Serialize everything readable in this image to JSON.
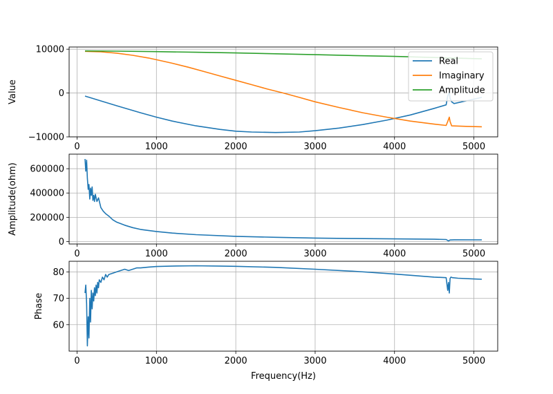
{
  "chart_data": [
    {
      "type": "line",
      "xlabel": "",
      "ylabel": "Value",
      "xlim": [
        -100,
        5300
      ],
      "ylim": [
        -10000,
        10500
      ],
      "xticks": [
        0,
        1000,
        2000,
        3000,
        4000,
        5000
      ],
      "xtick_labels": [
        "0",
        "1000",
        "2000",
        "3000",
        "4000",
        "5000"
      ],
      "yticks": [
        -10000,
        0,
        10000
      ],
      "ytick_labels": [
        "−10000",
        "0",
        "10000"
      ],
      "grid": true,
      "legend_position": "upper right",
      "series": [
        {
          "name": "Real",
          "color": "#1f77b4",
          "x": [
            100,
            300,
            500,
            800,
            1000,
            1200,
            1500,
            1800,
            2000,
            2200,
            2500,
            2800,
            3000,
            3300,
            3600,
            3900,
            4200,
            4500,
            4650,
            4670,
            4690,
            4700,
            4720,
            4750,
            4900,
            5100
          ],
          "y": [
            -700,
            -1800,
            -2900,
            -4500,
            -5500,
            -6400,
            -7500,
            -8300,
            -8700,
            -8900,
            -9000,
            -8900,
            -8600,
            -8000,
            -7200,
            -6200,
            -5000,
            -3500,
            -2700,
            -700,
            200,
            -1200,
            -2000,
            -2400,
            -1800,
            -1000
          ]
        },
        {
          "name": "Imaginary",
          "color": "#ff7f0e",
          "x": [
            100,
            300,
            500,
            700,
            900,
            1000,
            1200,
            1400,
            1600,
            1800,
            2000,
            2200,
            2400,
            2600,
            2800,
            3000,
            3300,
            3600,
            3900,
            4200,
            4500,
            4650,
            4670,
            4690,
            4700,
            4720,
            4900,
            5100
          ],
          "y": [
            9500,
            9400,
            9100,
            8600,
            8000,
            7600,
            6800,
            5900,
            4900,
            3900,
            2900,
            1900,
            900,
            0,
            -1000,
            -2000,
            -3300,
            -4500,
            -5500,
            -6400,
            -7100,
            -7400,
            -6500,
            -5500,
            -6500,
            -7500,
            -7600,
            -7700
          ]
        },
        {
          "name": "Amplitude",
          "color": "#2ca02c",
          "x": [
            100,
            500,
            1000,
            1500,
            2000,
            2500,
            3000,
            3500,
            4000,
            4500,
            5100
          ],
          "y": [
            9600,
            9550,
            9450,
            9300,
            9150,
            8950,
            8750,
            8550,
            8350,
            8100,
            7800
          ]
        }
      ]
    },
    {
      "type": "line",
      "xlabel": "",
      "ylabel": "Amplitude(ohm)",
      "xlim": [
        -100,
        5300
      ],
      "ylim": [
        -20000,
        720000
      ],
      "xticks": [
        0,
        1000,
        2000,
        3000,
        4000,
        5000
      ],
      "xtick_labels": [
        "0",
        "1000",
        "2000",
        "3000",
        "4000",
        "5000"
      ],
      "yticks": [
        0,
        200000,
        400000,
        600000
      ],
      "ytick_labels": [
        "0",
        "200000",
        "400000",
        "600000"
      ],
      "grid": true,
      "series": [
        {
          "name": "",
          "color": "#1f77b4",
          "x": [
            100,
            110,
            120,
            130,
            140,
            150,
            160,
            170,
            180,
            190,
            200,
            210,
            220,
            230,
            250,
            270,
            300,
            330,
            360,
            400,
            450,
            500,
            600,
            700,
            800,
            1000,
            1200,
            1500,
            2000,
            2500,
            3000,
            3500,
            4000,
            4500,
            4650,
            4680,
            4700,
            4750,
            5100
          ],
          "y": [
            680000,
            580000,
            670000,
            520000,
            430000,
            470000,
            350000,
            440000,
            380000,
            450000,
            340000,
            380000,
            330000,
            390000,
            330000,
            360000,
            280000,
            250000,
            230000,
            210000,
            180000,
            160000,
            135000,
            115000,
            100000,
            83000,
            70000,
            57000,
            43000,
            35000,
            29000,
            25000,
            22000,
            19000,
            17000,
            5000,
            13000,
            15000,
            14000
          ]
        }
      ]
    },
    {
      "type": "line",
      "xlabel": "Frequency(Hz)",
      "ylabel": "Phase",
      "xlim": [
        -100,
        5300
      ],
      "ylim": [
        50,
        84
      ],
      "xticks": [
        0,
        1000,
        2000,
        3000,
        4000,
        5000
      ],
      "xtick_labels": [
        "0",
        "1000",
        "2000",
        "3000",
        "4000",
        "5000"
      ],
      "yticks": [
        60,
        70,
        80
      ],
      "ytick_labels": [
        "60",
        "70",
        "80"
      ],
      "grid": true,
      "series": [
        {
          "name": "",
          "color": "#1f77b4",
          "x": [
            100,
            110,
            120,
            130,
            140,
            150,
            160,
            170,
            180,
            190,
            200,
            210,
            220,
            230,
            240,
            250,
            260,
            270,
            280,
            300,
            320,
            340,
            360,
            380,
            400,
            450,
            500,
            550,
            600,
            650,
            700,
            750,
            800,
            900,
            1000,
            1200,
            1500,
            1800,
            2000,
            2500,
            3000,
            3500,
            4000,
            4500,
            4650,
            4670,
            4680,
            4690,
            4700,
            4710,
            4730,
            4800,
            5000,
            5100
          ],
          "y": [
            72,
            75,
            68,
            52,
            63,
            55,
            70,
            61,
            73,
            66,
            72,
            69,
            74,
            71,
            75,
            72,
            76,
            74,
            77,
            76,
            78,
            77,
            79,
            78,
            79,
            79.5,
            80,
            80.5,
            81,
            80.5,
            81,
            81.5,
            81.5,
            81.8,
            82,
            82.2,
            82.3,
            82.2,
            82.1,
            81.7,
            81,
            80.2,
            79.2,
            78,
            77.8,
            73,
            76,
            72,
            77.5,
            78,
            77.8,
            77.6,
            77.3,
            77.2
          ]
        }
      ]
    }
  ]
}
